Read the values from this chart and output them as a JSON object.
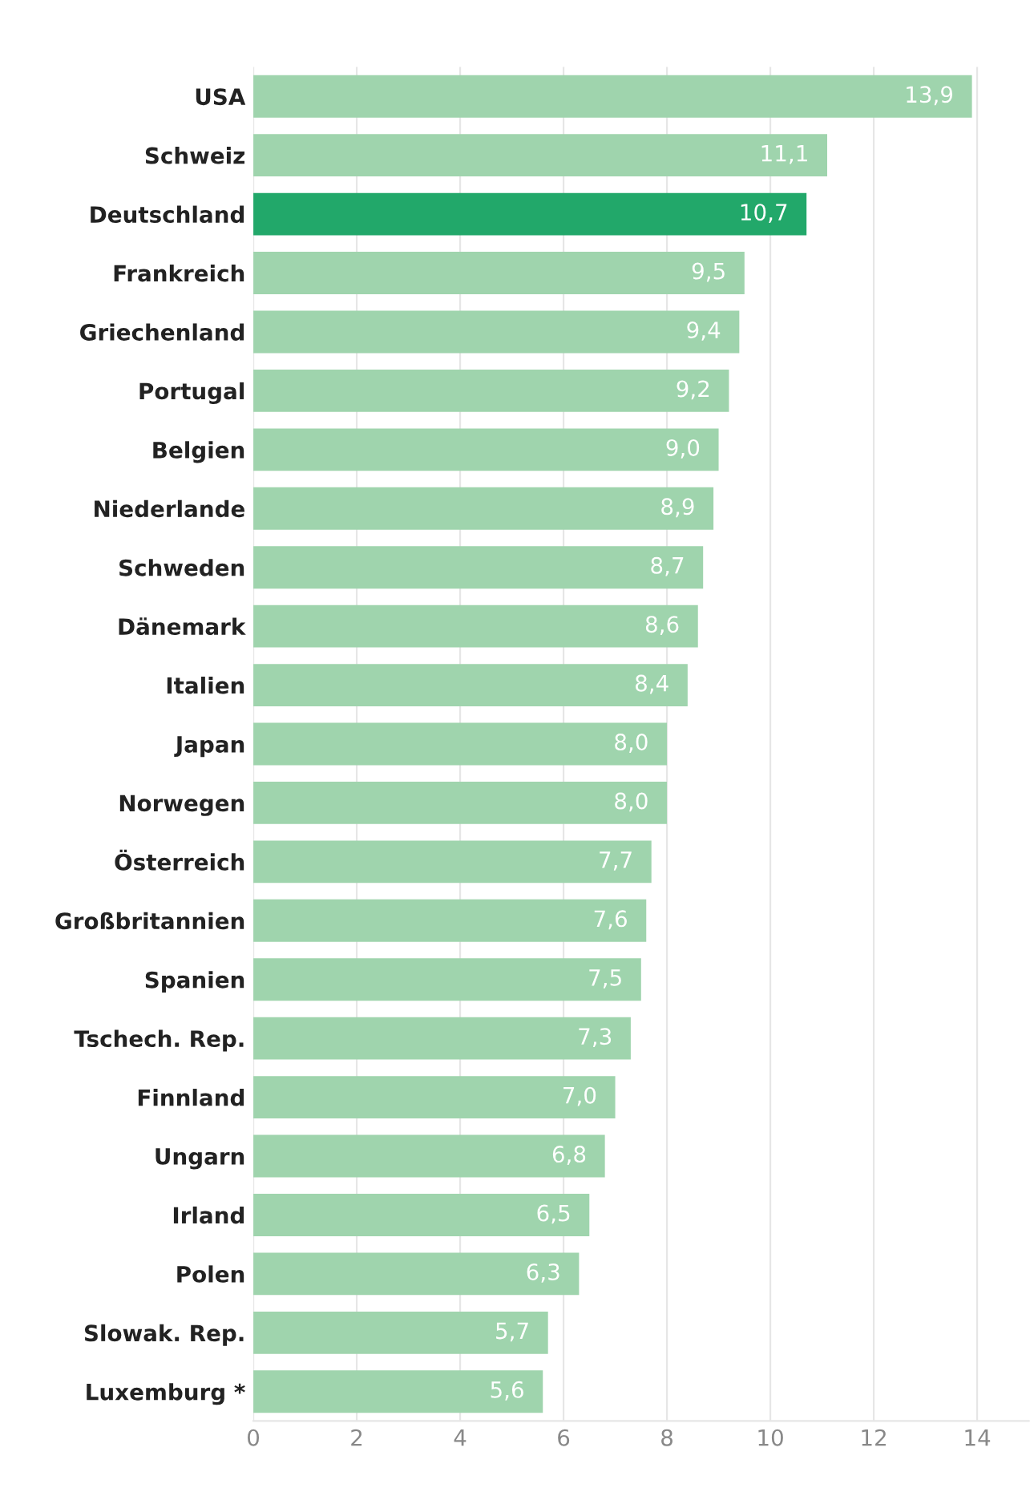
{
  "chart_data": {
    "type": "bar",
    "orientation": "horizontal",
    "categories": [
      "USA",
      "Schweiz",
      "Deutschland",
      "Frankreich",
      "Griechenland",
      "Portugal",
      "Belgien",
      "Niederlande",
      "Schweden",
      "Dänemark",
      "Italien",
      "Japan",
      "Norwegen",
      "Österreich",
      "Großbritannien",
      "Spanien",
      "Tschech. Rep.",
      "Finnland",
      "Ungarn",
      "Irland",
      "Polen",
      "Slowak. Rep.",
      "Luxemburg *"
    ],
    "values": [
      13.9,
      11.1,
      10.7,
      9.5,
      9.4,
      9.2,
      9.0,
      8.9,
      8.7,
      8.6,
      8.4,
      8.0,
      8.0,
      7.7,
      7.6,
      7.5,
      7.3,
      7.0,
      6.8,
      6.5,
      6.3,
      5.7,
      5.6
    ],
    "value_labels": [
      "13,9",
      "11,1",
      "10,7",
      "9,5",
      "9,4",
      "9,2",
      "9,0",
      "8,9",
      "8,7",
      "8,6",
      "8,4",
      "8,0",
      "8,0",
      "7,7",
      "7,6",
      "7,5",
      "7,3",
      "7,0",
      "6,8",
      "6,5",
      "6,3",
      "5,7",
      "5,6"
    ],
    "colors": [
      "#9fd4ad",
      "#9fd4ad",
      "#22a86a",
      "#9fd4ad",
      "#9fd4ad",
      "#9fd4ad",
      "#9fd4ad",
      "#9fd4ad",
      "#9fd4ad",
      "#9fd4ad",
      "#9fd4ad",
      "#9fd4ad",
      "#9fd4ad",
      "#9fd4ad",
      "#9fd4ad",
      "#9fd4ad",
      "#9fd4ad",
      "#9fd4ad",
      "#9fd4ad",
      "#9fd4ad",
      "#9fd4ad",
      "#9fd4ad",
      "#9fd4ad"
    ],
    "xlim": [
      0,
      15
    ],
    "xticks": [
      0,
      2,
      4,
      6,
      8,
      10,
      12,
      14
    ],
    "grid": "x"
  }
}
